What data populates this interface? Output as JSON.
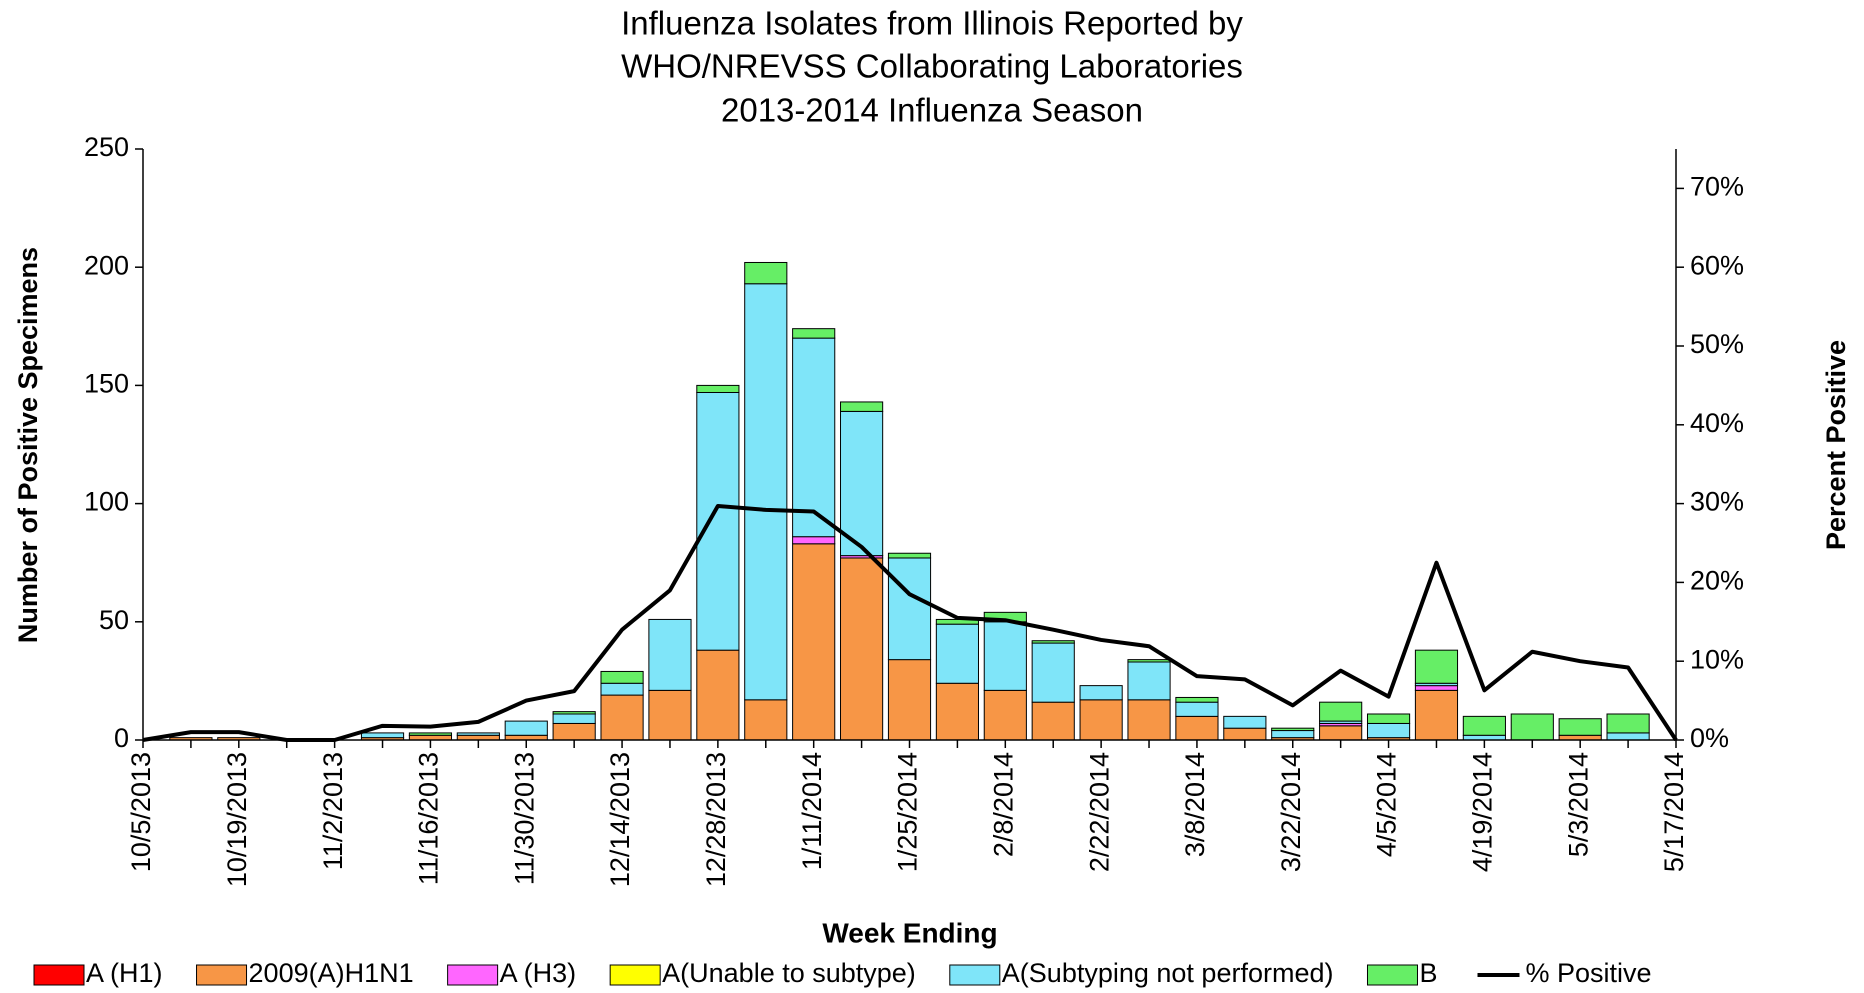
{
  "chart_data": {
    "type": "bar",
    "title": [
      "Influenza  Isolates from Illinois Reported by",
      "WHO/NREVSS Collaborating  Laboratories",
      "2013-2014 Influenza Season"
    ],
    "x_label": "Week Ending",
    "y_label": "Number of  Positive Specimens",
    "y2_label": "Percent Positive",
    "stacked": true,
    "categories": [
      "10/5/2013",
      null,
      "10/19/2013",
      null,
      "11/2/2013",
      null,
      "11/16/2013",
      null,
      "11/30/2013",
      null,
      "12/14/2013",
      null,
      "12/28/2013",
      null,
      "1/11/2014",
      null,
      "1/25/2014",
      null,
      "2/8/2014",
      null,
      "2/22/2014",
      null,
      "3/8/2014",
      null,
      "3/22/2014",
      null,
      "4/5/2014",
      null,
      "4/19/2014",
      null,
      "5/3/2014",
      null,
      "5/17/2014"
    ],
    "ylim": [
      0,
      250
    ],
    "yticks": [
      0,
      50,
      100,
      150,
      200,
      250
    ],
    "y2lim": [
      0,
      75
    ],
    "y2ticks": [
      {
        "value": 0,
        "label": "0%"
      },
      {
        "value": 10,
        "label": "10%"
      },
      {
        "value": 20,
        "label": "20%"
      },
      {
        "value": 30,
        "label": "30%"
      },
      {
        "value": 40,
        "label": "40%"
      },
      {
        "value": 50,
        "label": "50%"
      },
      {
        "value": 60,
        "label": "60%"
      },
      {
        "value": 70,
        "label": "70%"
      }
    ],
    "series": [
      {
        "name": "A (H1)",
        "color": "#ff0000",
        "values": [
          0,
          0,
          0,
          0,
          0,
          0,
          0,
          0,
          0,
          0,
          0,
          0,
          0,
          0,
          0,
          0,
          0,
          0,
          0,
          0,
          0,
          0,
          0,
          0,
          0,
          0,
          0,
          0,
          0,
          0,
          0,
          0,
          0
        ]
      },
      {
        "name": "2009(A)H1N1",
        "color": "#f79646",
        "values": [
          0,
          1,
          1,
          0,
          0,
          1,
          2,
          2,
          2,
          7,
          19,
          21,
          38,
          17,
          83,
          77,
          34,
          24,
          21,
          16,
          17,
          17,
          10,
          5,
          1,
          6,
          1,
          21,
          0,
          0,
          2,
          0,
          0
        ]
      },
      {
        "name": "A (H3)",
        "color": "#ff66ff",
        "values": [
          0,
          0,
          0,
          0,
          0,
          0,
          0,
          0,
          0,
          0,
          0,
          0,
          0,
          0,
          3,
          1,
          0,
          0,
          0,
          0,
          0,
          0,
          0,
          0,
          0,
          1,
          0,
          2,
          0,
          0,
          0,
          0,
          0
        ]
      },
      {
        "name": "A(Unable to subtype)",
        "color": "#ffff00",
        "values": [
          0,
          0,
          0,
          0,
          0,
          0,
          0,
          0,
          0,
          0,
          0,
          0,
          0,
          0,
          0,
          0,
          0,
          0,
          0,
          0,
          0,
          0,
          0,
          0,
          0,
          0,
          0,
          0,
          0,
          0,
          0,
          0,
          0
        ]
      },
      {
        "name": "A(Subtyping not performed)",
        "color": "#7fe5f9",
        "values": [
          0,
          0,
          0,
          0,
          0,
          2,
          0,
          1,
          6,
          4,
          5,
          30,
          109,
          176,
          84,
          61,
          43,
          25,
          29,
          25,
          6,
          16,
          6,
          5,
          3,
          1,
          6,
          1,
          2,
          0,
          0,
          3,
          0
        ]
      },
      {
        "name": "B",
        "color": "#66ee66",
        "values": [
          0,
          0,
          0,
          0,
          0,
          0,
          1,
          0,
          0,
          1,
          5,
          0,
          3,
          9,
          4,
          4,
          2,
          2,
          4,
          1,
          0,
          1,
          2,
          0,
          1,
          8,
          4,
          14,
          8,
          11,
          7,
          8,
          0
        ]
      },
      {
        "name": "% Positive",
        "type": "line",
        "axis": "y2",
        "color": "#000000",
        "values": [
          0,
          1,
          1,
          0,
          0,
          1.8,
          1.7,
          2.3,
          5,
          6.2,
          14,
          19,
          29.7,
          29.2,
          29,
          24.5,
          18.5,
          15.5,
          15.2,
          14,
          12.7,
          11.9,
          8.1,
          7.7,
          4.4,
          8.8,
          5.5,
          22.5,
          6.3,
          11.2,
          10,
          9.2,
          0
        ]
      }
    ]
  }
}
